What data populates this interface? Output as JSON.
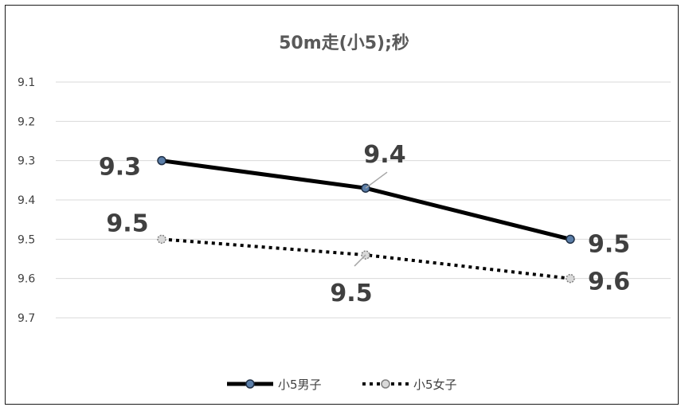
{
  "chart_data": {
    "type": "line",
    "title": "50m走(小5);秒",
    "xlabel": "",
    "ylabel": "",
    "ylim": [
      9.1,
      9.7
    ],
    "y_inverted": true,
    "yticks": [
      "9.1",
      "9.2",
      "9.3",
      "9.4",
      "9.5",
      "9.6",
      "9.7"
    ],
    "x": [
      "",
      "",
      ""
    ],
    "grid": true,
    "legend_position": "bottom",
    "series": [
      {
        "name": "小5男子",
        "values": [
          9.3,
          9.37,
          9.5
        ],
        "labels": [
          "9.3",
          "9.4",
          "9.5"
        ],
        "style": "solid",
        "color": "#000000",
        "marker_color": "#5b7ea8"
      },
      {
        "name": "小5女子",
        "values": [
          9.5,
          9.54,
          9.6
        ],
        "labels": [
          "9.5",
          "9.5",
          "9.6"
        ],
        "style": "dotted",
        "color": "#000000",
        "marker_color": "#d9d9d9"
      }
    ]
  }
}
